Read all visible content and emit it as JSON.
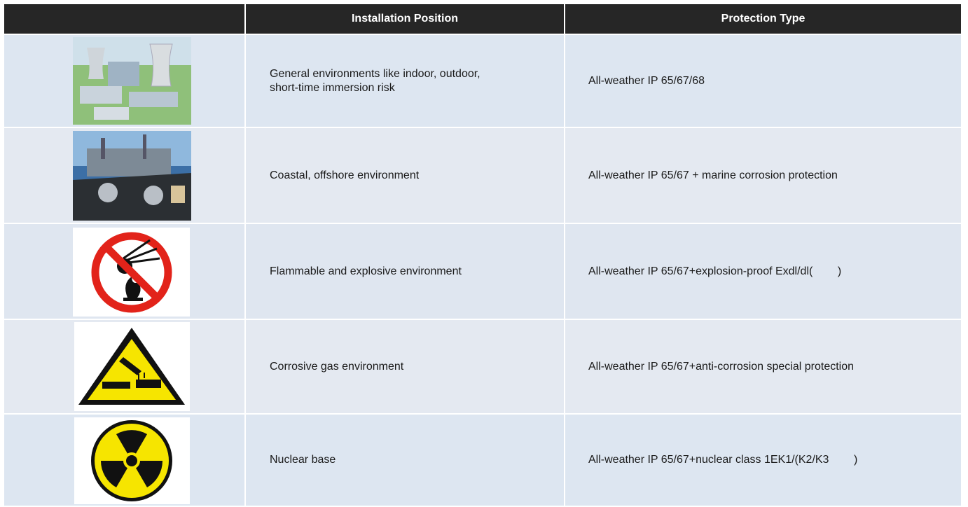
{
  "table": {
    "headers": {
      "position": "Installation Position",
      "protection": "Protection Type"
    },
    "rows": [
      {
        "position": "General environments like indoor, outdoor,\nshort-time immersion risk",
        "protection": "All-weather IP 65/67/68"
      },
      {
        "position": "Coastal, offshore environment",
        "protection": "All-weather IP 65/67 + marine corrosion protection"
      },
      {
        "position": "Flammable and explosive environment",
        "protection": "All-weather IP 65/67+explosion-proof Exdl/dl(        )"
      },
      {
        "position": "Corrosive gas environment",
        "protection": "All-weather IP 65/67+anti-corrosion special protection"
      },
      {
        "position": "Nuclear base",
        "protection": "All-weather IP 65/67+nuclear class 1EK1/(K2/K3        )"
      }
    ]
  }
}
